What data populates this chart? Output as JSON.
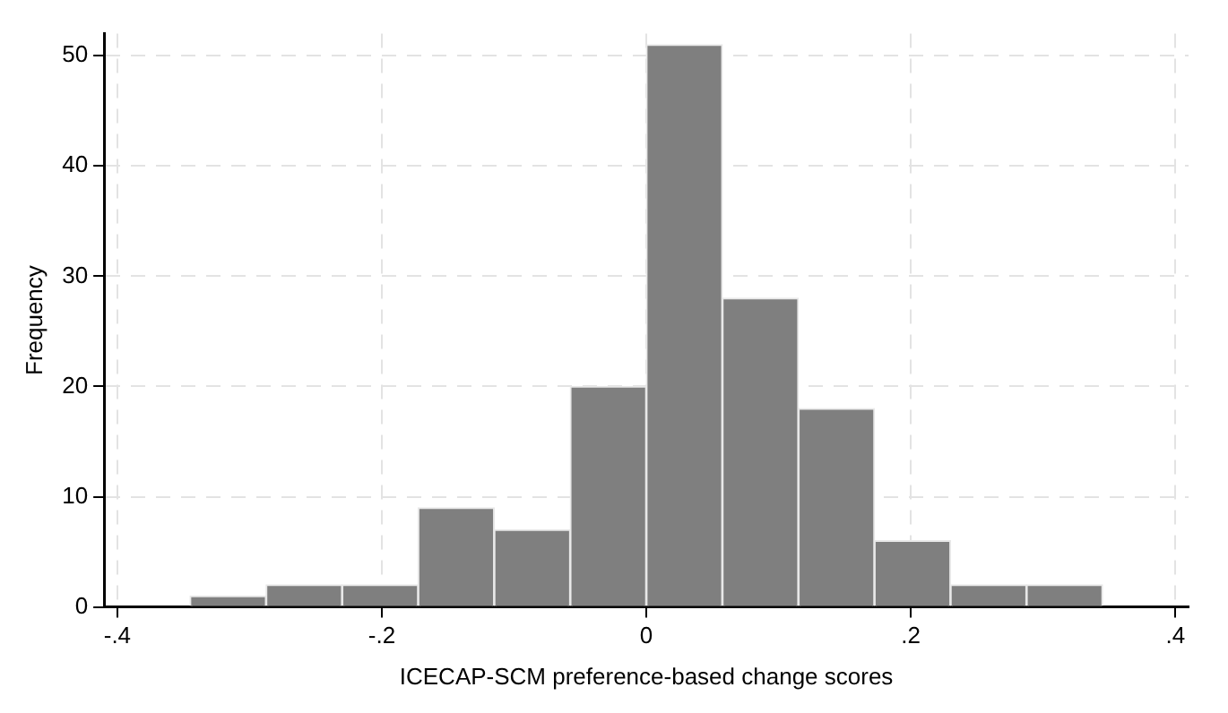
{
  "chart_data": {
    "type": "histogram",
    "xlabel": "ICECAP-SCM preference-based change scores",
    "ylabel": "Frequency",
    "bins": [
      -0.345,
      -0.2875,
      -0.23,
      -0.1725,
      -0.115,
      -0.0575,
      0,
      0.0575,
      0.115,
      0.1725,
      0.23,
      0.2875,
      0.345
    ],
    "values": [
      1,
      2,
      2,
      9,
      7,
      20,
      51,
      28,
      18,
      6,
      2,
      2
    ],
    "color": "#7f7f7f",
    "xlim": [
      -0.41,
      0.41
    ],
    "xticks": [
      {
        "value": -0.4,
        "label": "-.4"
      },
      {
        "value": -0.2,
        "label": "-.2"
      },
      0,
      {
        "value": 0.2,
        "label": ".2"
      },
      {
        "value": 0.4,
        "label": ".4"
      }
    ],
    "ylim": [
      0,
      52
    ],
    "yticks": [
      0,
      10,
      20,
      30,
      40,
      50
    ],
    "grid": true
  }
}
